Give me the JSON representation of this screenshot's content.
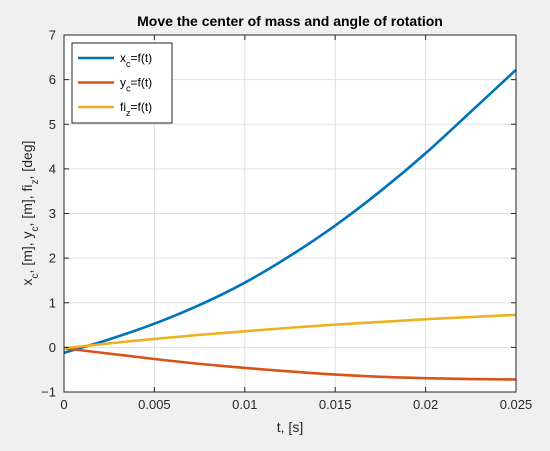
{
  "chart_data": {
    "type": "line",
    "title": "Move the center of mass and angle of rotation",
    "xlabel": "t, [s]",
    "ylabel": {
      "parts": [
        {
          "text": "x",
          "sub": "c"
        },
        {
          "text": ", [m], y",
          "sub": "c"
        },
        {
          "text": ", [m], fi",
          "sub": "z"
        },
        {
          "text": ", [deg]",
          "sub": ""
        }
      ]
    },
    "xlim": [
      0,
      0.025
    ],
    "ylim": [
      -1,
      7
    ],
    "xticks": [
      0,
      0.005,
      0.01,
      0.015,
      0.02,
      0.025
    ],
    "xtick_labels": [
      "0",
      "0.005",
      "0.01",
      "0.015",
      "0.02",
      "0.025"
    ],
    "yticks": [
      -1,
      0,
      1,
      2,
      3,
      4,
      5,
      6,
      7
    ],
    "ytick_labels": [
      "−1",
      "0",
      "1",
      "2",
      "3",
      "4",
      "5",
      "6",
      "7"
    ],
    "grid": true,
    "legend_position": "top-left",
    "x": [
      0,
      0.0025,
      0.005,
      0.0075,
      0.01,
      0.0125,
      0.015,
      0.0175,
      0.02,
      0.0225,
      0.025
    ],
    "series": [
      {
        "name": {
          "main": "x",
          "sub": "c",
          "rest": "=f(t)"
        },
        "color": "#0072BD",
        "values": [
          -0.12,
          0.18,
          0.53,
          0.95,
          1.45,
          2.05,
          2.73,
          3.5,
          4.35,
          5.28,
          6.22
        ]
      },
      {
        "name": {
          "main": "y",
          "sub": "c",
          "rest": "=f(t)"
        },
        "color": "#D95319",
        "values": [
          -0.02,
          -0.14,
          -0.26,
          -0.37,
          -0.46,
          -0.54,
          -0.61,
          -0.66,
          -0.69,
          -0.71,
          -0.72
        ]
      },
      {
        "name": {
          "main": "fi",
          "sub": "z",
          "rest": "=f(t)"
        },
        "color": "#EDB120",
        "values": [
          -0.02,
          0.09,
          0.19,
          0.28,
          0.36,
          0.44,
          0.51,
          0.57,
          0.63,
          0.68,
          0.73
        ]
      }
    ]
  }
}
